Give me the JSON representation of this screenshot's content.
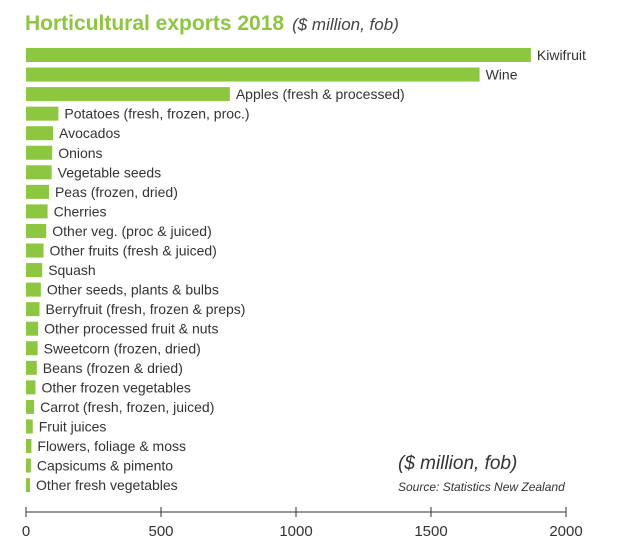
{
  "chart_data": {
    "type": "bar",
    "orientation": "horizontal",
    "title": "Horticultural exports 2018",
    "subtitle": "($ million, fob)",
    "unit_note": "($ million, fob)",
    "source": "Source: Statistics New Zealand",
    "xlim": [
      0,
      2000
    ],
    "xticks": [
      0,
      500,
      1000,
      1500,
      2000
    ],
    "bar_color": "#8dc63f",
    "categories": [
      "Kiwifruit",
      "Wine",
      "Apples (fresh & processed)",
      "Potatoes (fresh, frozen, proc.)",
      "Avocados",
      "Onions",
      "Vegetable seeds",
      "Peas (frozen, dried)",
      "Cherries",
      "Other veg. (proc & juiced)",
      "Other fruits (fresh & juiced)",
      "Squash",
      "Other seeds, plants & bulbs",
      "Berryfruit (fresh, frozen & preps)",
      "Other processed fruit & nuts",
      "Sweetcorn (frozen, dried)",
      "Beans (frozen & dried)",
      "Other frozen vegetables",
      "Carrot (fresh, frozen, juiced)",
      "Fruit juices",
      "Flowers, foliage & moss",
      "Capsicums & pimento",
      "Other fresh vegetables"
    ],
    "values": [
      1870,
      1680,
      755,
      120,
      100,
      97,
      95,
      85,
      80,
      75,
      65,
      60,
      55,
      50,
      45,
      43,
      40,
      35,
      30,
      25,
      20,
      18,
      15
    ]
  }
}
